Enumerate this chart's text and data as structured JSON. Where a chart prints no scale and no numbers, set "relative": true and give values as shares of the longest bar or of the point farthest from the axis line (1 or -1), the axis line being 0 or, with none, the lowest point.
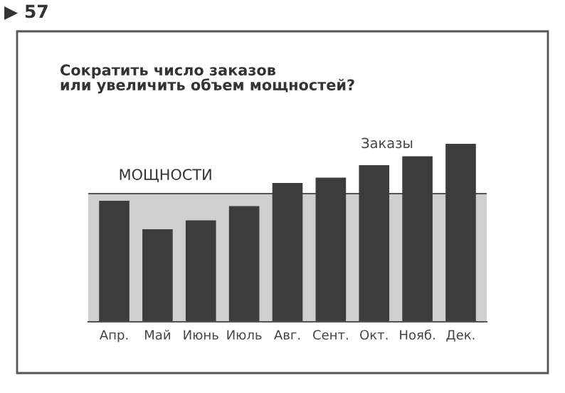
{
  "chart_data": {
    "type": "bar",
    "relative": true,
    "title": "Сократить число заказов\nили увеличить объем мощностей?",
    "annotations": [
      "▶ 57"
    ],
    "categories": [
      "Апр.",
      "Май",
      "Июнь",
      "Июль",
      "Авг.",
      "Сент.",
      "Окт.",
      "Нояб.",
      "Дек."
    ],
    "series": [
      {
        "name": "Заказы",
        "color": "#3c3c3c",
        "values": [
          0.68,
          0.52,
          0.57,
          0.65,
          0.78,
          0.81,
          0.88,
          0.93,
          1.0
        ]
      }
    ],
    "bands": [
      {
        "axis": "y",
        "from": 0,
        "to": 0.72,
        "label": "МОЩНОСТИ",
        "color": "#cfcfcf"
      }
    ],
    "ref_lines": [
      {
        "axis": "y",
        "value": 0.72,
        "color": "#555555"
      }
    ],
    "grid": false,
    "legend": false
  }
}
